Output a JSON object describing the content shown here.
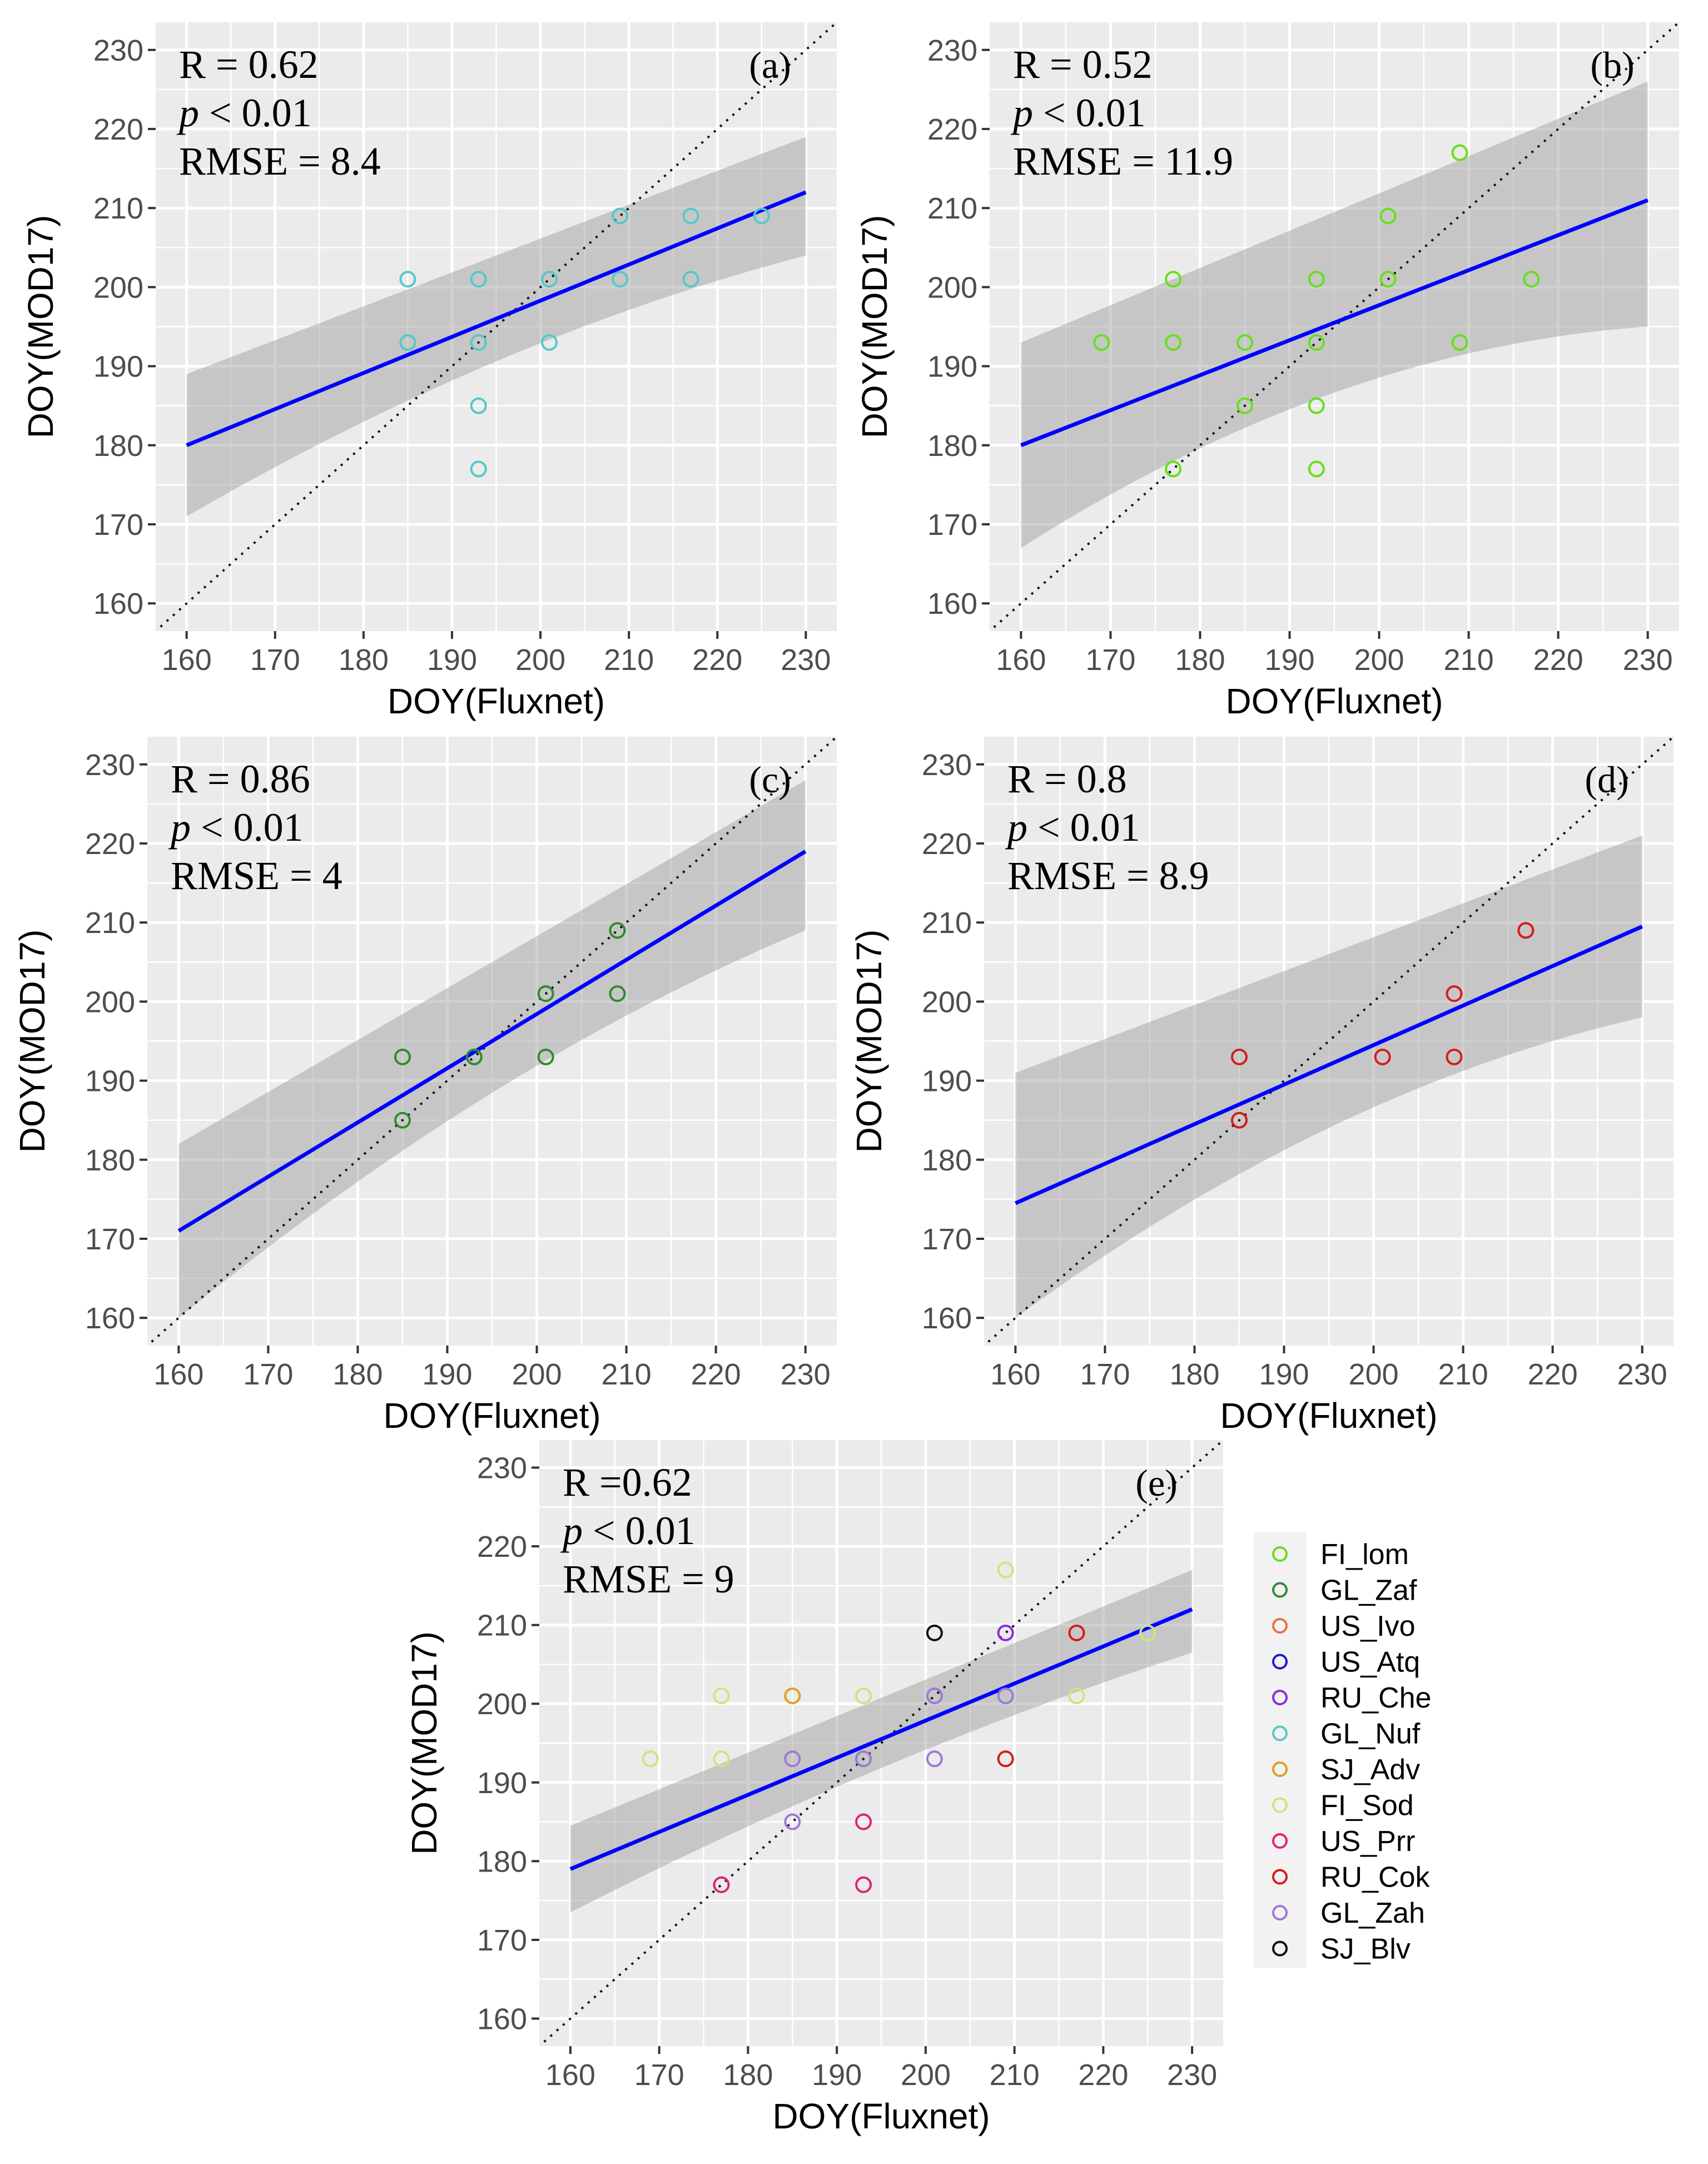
{
  "chart_data": [
    {
      "type": "scatter",
      "panel_tag": "(a)",
      "stats": {
        "r_text": "R = 0.62",
        "p_letter": "p",
        "p_rest": " < 0.01",
        "rmse_text": "RMSE = 8.4"
      },
      "xlabel": "DOY(Fluxnet)",
      "ylabel": "DOY(MOD17)",
      "xlim": [
        160,
        230
      ],
      "ylim": [
        160,
        230
      ],
      "xticks": [
        160,
        170,
        180,
        190,
        200,
        210,
        220,
        230
      ],
      "yticks": [
        160,
        170,
        180,
        190,
        200,
        210,
        220,
        230
      ],
      "regression": {
        "x": [
          160,
          230
        ],
        "y": [
          180,
          212
        ],
        "ci_lower": [
          171,
          204
        ],
        "ci_upper": [
          189,
          219
        ]
      },
      "identity_line": true,
      "points": [
        {
          "x": 185,
          "y": 201,
          "site": "GL_Nuf"
        },
        {
          "x": 185,
          "y": 193,
          "site": "GL_Nuf"
        },
        {
          "x": 193,
          "y": 201,
          "site": "GL_Nuf"
        },
        {
          "x": 193,
          "y": 193,
          "site": "GL_Nuf"
        },
        {
          "x": 193,
          "y": 185,
          "site": "GL_Nuf"
        },
        {
          "x": 193,
          "y": 177,
          "site": "GL_Nuf"
        },
        {
          "x": 201,
          "y": 201,
          "site": "GL_Nuf"
        },
        {
          "x": 201,
          "y": 193,
          "site": "GL_Nuf"
        },
        {
          "x": 209,
          "y": 209,
          "site": "GL_Nuf"
        },
        {
          "x": 209,
          "y": 201,
          "site": "GL_Nuf"
        },
        {
          "x": 217,
          "y": 209,
          "site": "GL_Nuf"
        },
        {
          "x": 217,
          "y": 201,
          "site": "GL_Nuf"
        },
        {
          "x": 225,
          "y": 209,
          "site": "GL_Nuf"
        }
      ]
    },
    {
      "type": "scatter",
      "panel_tag": "(b)",
      "stats": {
        "r_text": "R = 0.52",
        "p_letter": "p",
        "p_rest": " < 0.01",
        "rmse_text": "RMSE = 11.9"
      },
      "xlabel": "DOY(Fluxnet)",
      "ylabel": "DOY(MOD17)",
      "xlim": [
        160,
        230
      ],
      "ylim": [
        160,
        230
      ],
      "xticks": [
        160,
        170,
        180,
        190,
        200,
        210,
        220,
        230
      ],
      "yticks": [
        160,
        170,
        180,
        190,
        200,
        210,
        220,
        230
      ],
      "regression": {
        "x": [
          160,
          230
        ],
        "y": [
          180,
          211
        ],
        "ci_lower": [
          167,
          195
        ],
        "ci_upper": [
          193,
          226
        ]
      },
      "identity_line": true,
      "points": [
        {
          "x": 169,
          "y": 193,
          "site": "FI_Lom"
        },
        {
          "x": 177,
          "y": 201,
          "site": "FI_Lom"
        },
        {
          "x": 177,
          "y": 193,
          "site": "FI_Lom"
        },
        {
          "x": 177,
          "y": 177,
          "site": "FI_Lom"
        },
        {
          "x": 185,
          "y": 193,
          "site": "FI_Lom"
        },
        {
          "x": 185,
          "y": 185,
          "site": "FI_Lom"
        },
        {
          "x": 193,
          "y": 201,
          "site": "FI_Lom"
        },
        {
          "x": 193,
          "y": 193,
          "site": "FI_Lom"
        },
        {
          "x": 193,
          "y": 185,
          "site": "FI_Lom"
        },
        {
          "x": 193,
          "y": 177,
          "site": "FI_Lom"
        },
        {
          "x": 201,
          "y": 209,
          "site": "FI_Lom"
        },
        {
          "x": 201,
          "y": 201,
          "site": "FI_Lom"
        },
        {
          "x": 209,
          "y": 217,
          "site": "FI_Lom"
        },
        {
          "x": 209,
          "y": 193,
          "site": "FI_Lom"
        },
        {
          "x": 217,
          "y": 201,
          "site": "FI_Lom"
        }
      ]
    },
    {
      "type": "scatter",
      "panel_tag": "(c)",
      "stats": {
        "r_text": "R = 0.86",
        "p_letter": "p",
        "p_rest": " < 0.01",
        "rmse_text": "RMSE = 4"
      },
      "xlabel": "DOY(Fluxnet)",
      "ylabel": "DOY(MOD17)",
      "xlim": [
        160,
        230
      ],
      "ylim": [
        160,
        230
      ],
      "xticks": [
        160,
        170,
        180,
        190,
        200,
        210,
        220,
        230
      ],
      "yticks": [
        160,
        170,
        180,
        190,
        200,
        210,
        220,
        230
      ],
      "regression": {
        "x": [
          160,
          230
        ],
        "y": [
          171,
          219
        ],
        "ci_lower": [
          160,
          209
        ],
        "ci_upper": [
          182,
          228
        ]
      },
      "identity_line": true,
      "points": [
        {
          "x": 185,
          "y": 193,
          "site": "GL_Zaf"
        },
        {
          "x": 185,
          "y": 185,
          "site": "GL_Zaf"
        },
        {
          "x": 193,
          "y": 193,
          "site": "GL_Zaf"
        },
        {
          "x": 201,
          "y": 201,
          "site": "GL_Zaf"
        },
        {
          "x": 201,
          "y": 193,
          "site": "GL_Zaf"
        },
        {
          "x": 209,
          "y": 209,
          "site": "GL_Zaf"
        },
        {
          "x": 209,
          "y": 201,
          "site": "GL_Zaf"
        }
      ]
    },
    {
      "type": "scatter",
      "panel_tag": "(d)",
      "stats": {
        "r_text": "R = 0.8",
        "p_letter": "p",
        "p_rest": " < 0.01",
        "rmse_text": "RMSE = 8.9"
      },
      "xlabel": "DOY(Fluxnet)",
      "ylabel": "DOY(MOD17)",
      "xlim": [
        160,
        230
      ],
      "ylim": [
        160,
        230
      ],
      "xticks": [
        160,
        170,
        180,
        190,
        200,
        210,
        220,
        230
      ],
      "yticks": [
        160,
        170,
        180,
        190,
        200,
        210,
        220,
        230
      ],
      "regression": {
        "x": [
          160,
          230
        ],
        "y": [
          174.5,
          209.5
        ],
        "ci_lower": [
          160,
          198
        ],
        "ci_upper": [
          191,
          221
        ]
      },
      "identity_line": true,
      "points": [
        {
          "x": 185,
          "y": 193,
          "site": "RU_Cok"
        },
        {
          "x": 185,
          "y": 185,
          "site": "RU_Cok"
        },
        {
          "x": 201,
          "y": 193,
          "site": "RU_Cok"
        },
        {
          "x": 209,
          "y": 201,
          "site": "RU_Cok"
        },
        {
          "x": 209,
          "y": 193,
          "site": "RU_Cok"
        },
        {
          "x": 217,
          "y": 209,
          "site": "RU_Cok"
        }
      ]
    },
    {
      "type": "scatter",
      "panel_tag": "(e)",
      "stats": {
        "r_text": "R =0.62",
        "p_letter": "p",
        "p_rest": " < 0.01",
        "rmse_text": "RMSE = 9"
      },
      "xlabel": "DOY(Fluxnet)",
      "ylabel": "DOY(MOD17)",
      "xlim": [
        160,
        230
      ],
      "ylim": [
        160,
        230
      ],
      "xticks": [
        160,
        170,
        180,
        190,
        200,
        210,
        220,
        230
      ],
      "yticks": [
        160,
        170,
        180,
        190,
        200,
        210,
        220,
        230
      ],
      "regression": {
        "x": [
          160,
          230
        ],
        "y": [
          179,
          212
        ],
        "ci_lower": [
          173.5,
          206.5
        ],
        "ci_upper": [
          184.5,
          217
        ]
      },
      "identity_line": true,
      "points": [
        {
          "x": 169,
          "y": 193,
          "site": "FI_Sod"
        },
        {
          "x": 177,
          "y": 201,
          "site": "FI_Sod"
        },
        {
          "x": 177,
          "y": 193,
          "site": "FI_Sod"
        },
        {
          "x": 177,
          "y": 177,
          "site": "US_Prr"
        },
        {
          "x": 185,
          "y": 201,
          "site": "SJ_Adv"
        },
        {
          "x": 185,
          "y": 193,
          "site": "GL_Zah"
        },
        {
          "x": 185,
          "y": 185,
          "site": "GL_Zah"
        },
        {
          "x": 193,
          "y": 201,
          "site": "FI_Sod"
        },
        {
          "x": 193,
          "y": 193,
          "site": "GL_Zah"
        },
        {
          "x": 193,
          "y": 185,
          "site": "US_Prr"
        },
        {
          "x": 193,
          "y": 177,
          "site": "US_Prr"
        },
        {
          "x": 201,
          "y": 209,
          "site": "SJ_Blv"
        },
        {
          "x": 201,
          "y": 201,
          "site": "GL_Zah"
        },
        {
          "x": 201,
          "y": 193,
          "site": "GL_Zah"
        },
        {
          "x": 209,
          "y": 217,
          "site": "FI_Sod"
        },
        {
          "x": 209,
          "y": 209,
          "site": "RU_Che"
        },
        {
          "x": 209,
          "y": 201,
          "site": "GL_Zah"
        },
        {
          "x": 209,
          "y": 193,
          "site": "RU_Cok"
        },
        {
          "x": 217,
          "y": 209,
          "site": "RU_Cok"
        },
        {
          "x": 217,
          "y": 201,
          "site": "FI_Sod"
        },
        {
          "x": 225,
          "y": 209,
          "site": "FI_Sod"
        }
      ]
    }
  ],
  "legend": [
    {
      "label": "FI_lom",
      "site": "FI_Lom"
    },
    {
      "label": "GL_Zaf",
      "site": "GL_Zaf"
    },
    {
      "label": "US_Ivo",
      "site": "US_Ivo"
    },
    {
      "label": "US_Atq",
      "site": "US_Atq"
    },
    {
      "label": "RU_Che",
      "site": "RU_Che"
    },
    {
      "label": "GL_Nuf",
      "site": "GL_Nuf"
    },
    {
      "label": "SJ_Adv",
      "site": "SJ_Adv"
    },
    {
      "label": "FI_Sod",
      "site": "FI_Sod"
    },
    {
      "label": "US_Prr",
      "site": "US_Prr"
    },
    {
      "label": "RU_Cok",
      "site": "RU_Cok"
    },
    {
      "label": "GL_Zah",
      "site": "GL_Zah"
    },
    {
      "label": "SJ_Blv",
      "site": "SJ_Blv"
    }
  ],
  "colors": {
    "FI_Lom": "#66e01a",
    "GL_Zaf": "#2e8b2e",
    "US_Ivo": "#e8723a",
    "US_Atq": "#1a1ad6",
    "RU_Che": "#8a2be2",
    "GL_Nuf": "#55c8c8",
    "SJ_Adv": "#e0a020",
    "FI_Sod": "#c8e87a",
    "US_Prr": "#e0207a",
    "RU_Cok": "#d61a1a",
    "GL_Zah": "#9a7ad6",
    "SJ_Blv": "#111111",
    "regression": "#0000ff",
    "ci_band": "#999999",
    "panel_background": "#ebebeb"
  }
}
